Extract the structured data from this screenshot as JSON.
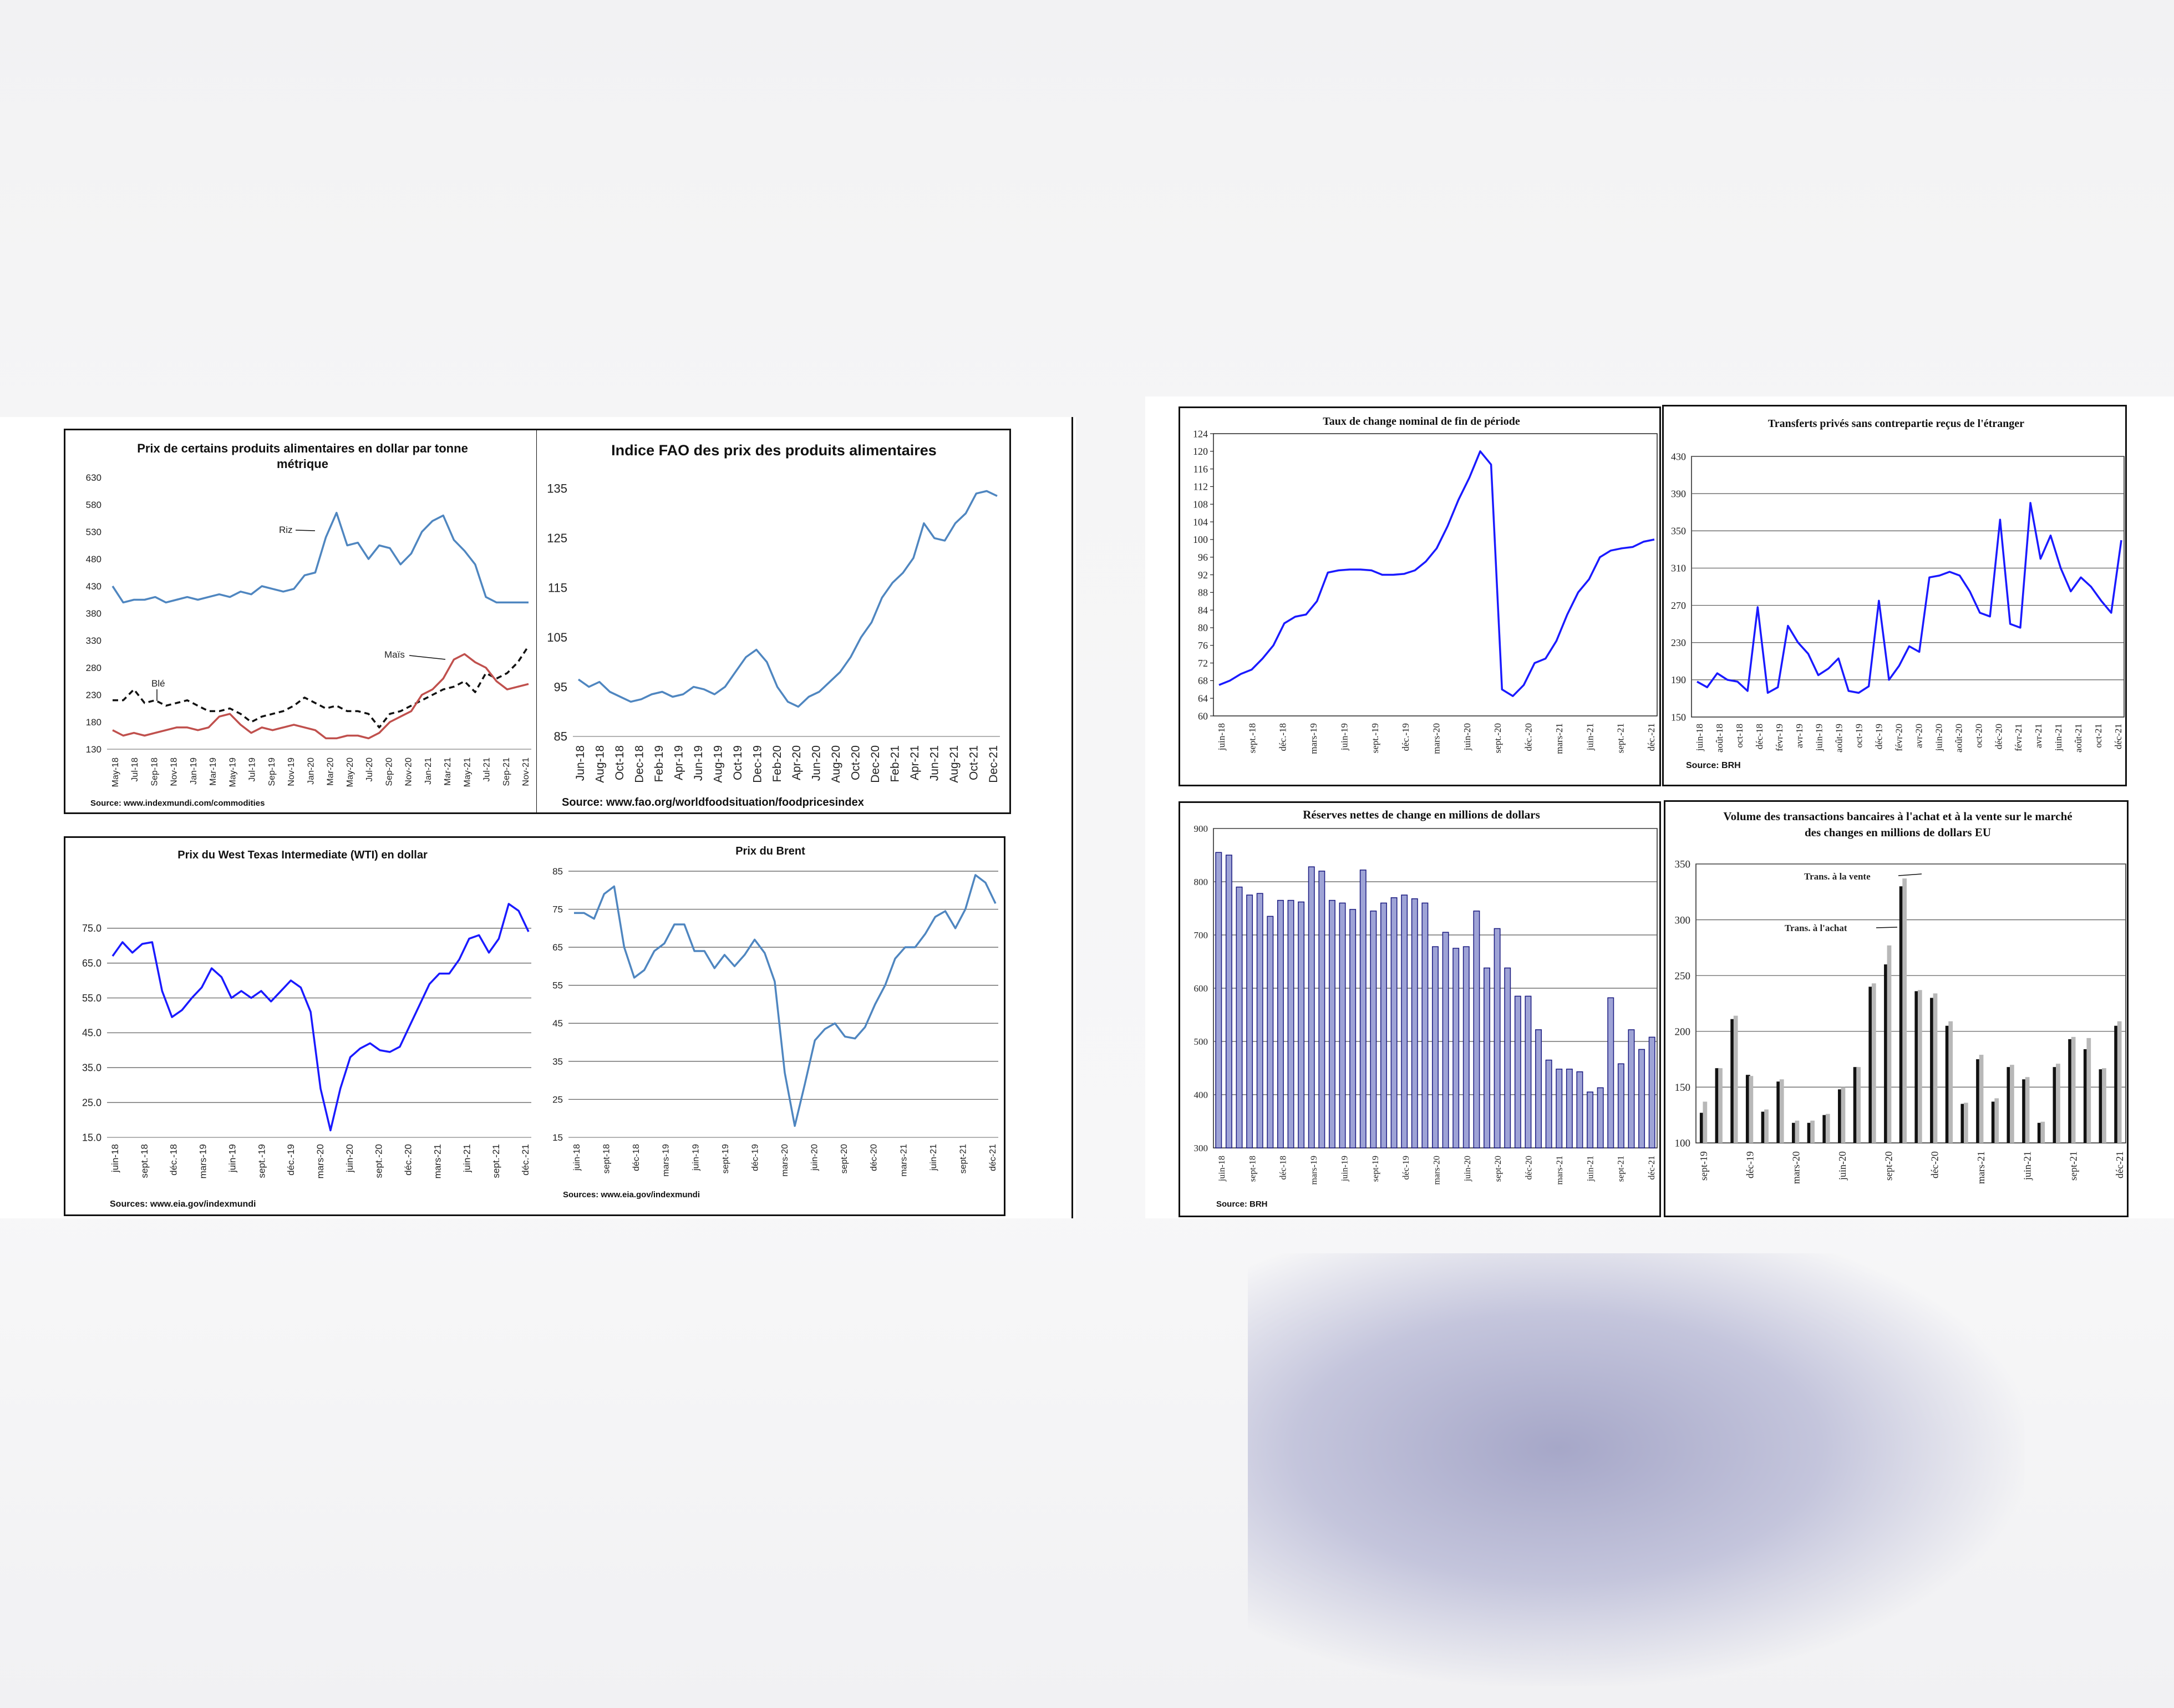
{
  "colors": {
    "blue": "#1a1aff",
    "steel": "#4f86c0",
    "red": "#c0504d",
    "black": "#111111",
    "grey": "#b8b8b8",
    "bar_fill": "#9ea3d6"
  },
  "chart_data": [
    {
      "id": "food",
      "type": "line",
      "title": "Prix de certains produits alimentaires en dollar par tonne métrique",
      "title_lines": [
        "Prix de certains produits alimentaires en dollar par tonne",
        "métrique"
      ],
      "y_ticks": [
        "130",
        "180",
        "230",
        "280",
        "330",
        "380",
        "430",
        "480",
        "530",
        "580",
        "630"
      ],
      "ylim": [
        130,
        630
      ],
      "x_labels": [
        "May-18",
        "Jul-18",
        "Sep-18",
        "Nov-18",
        "Jan-19",
        "Mar-19",
        "May-19",
        "Jul-19",
        "Sep-19",
        "Nov-19",
        "Jan-20",
        "Mar-20",
        "May-20",
        "Jul-20",
        "Sep-20",
        "Nov-20",
        "Jan-21",
        "Mar-21",
        "May-21",
        "Jul-21",
        "Sep-21",
        "Nov-21"
      ],
      "source": "Source: www.indexmundi.com/commodities",
      "annotations": [
        "Riz",
        "Blé",
        "Maïs"
      ],
      "series": [
        {
          "name": "Riz",
          "color": "#4f86c0",
          "dash": false,
          "values": [
            430,
            400,
            405,
            405,
            410,
            400,
            405,
            410,
            405,
            410,
            415,
            410,
            420,
            415,
            430,
            425,
            420,
            425,
            450,
            455,
            520,
            565,
            505,
            510,
            480,
            505,
            500,
            470,
            490,
            530,
            550,
            560,
            515,
            495,
            470,
            410,
            400,
            400,
            400,
            400
          ]
        },
        {
          "name": "Blé",
          "color": "#111111",
          "dash": true,
          "values": [
            220,
            220,
            240,
            215,
            220,
            210,
            215,
            220,
            210,
            200,
            200,
            205,
            195,
            180,
            190,
            195,
            200,
            210,
            225,
            215,
            205,
            210,
            200,
            200,
            195,
            170,
            195,
            200,
            210,
            220,
            230,
            240,
            245,
            255,
            235,
            270,
            260,
            270,
            290,
            320
          ]
        },
        {
          "name": "Maïs",
          "color": "#c0504d",
          "dash": false,
          "values": [
            165,
            155,
            160,
            155,
            160,
            165,
            170,
            170,
            165,
            170,
            190,
            195,
            175,
            160,
            170,
            165,
            170,
            175,
            170,
            165,
            150,
            150,
            155,
            155,
            150,
            160,
            180,
            190,
            200,
            230,
            240,
            260,
            295,
            305,
            290,
            280,
            255,
            240,
            245,
            250
          ]
        }
      ]
    },
    {
      "id": "fao",
      "type": "line",
      "title": "Indice FAO des prix des produits alimentaires",
      "y_ticks": [
        "85",
        "95",
        "105",
        "115",
        "125",
        "135"
      ],
      "ylim": [
        85,
        135
      ],
      "x_labels": [
        "Jun-18",
        "Aug-18",
        "Oct-18",
        "Dec-18",
        "Feb-19",
        "Apr-19",
        "Jun-19",
        "Aug-19",
        "Oct-19",
        "Dec-19",
        "Feb-20",
        "Apr-20",
        "Jun-20",
        "Aug-20",
        "Oct-20",
        "Dec-20",
        "Feb-21",
        "Apr-21",
        "Jun-21",
        "Aug-21",
        "Oct-21",
        "Dec-21"
      ],
      "source": "Source: www.fao.org/worldfoodsituation/foodpricesindex",
      "series": [
        {
          "name": "",
          "color": "#4f86c0",
          "values": [
            96.5,
            95,
            96,
            94,
            93,
            92,
            92.5,
            93.5,
            94,
            93,
            93.5,
            95,
            94.5,
            93.5,
            95,
            98,
            101,
            102.5,
            100,
            95,
            92,
            91,
            93,
            94,
            96,
            98,
            101,
            105,
            108,
            113,
            116,
            118,
            121,
            128,
            125,
            124.5,
            128,
            130,
            134,
            134.5,
            133.5
          ]
        }
      ]
    },
    {
      "id": "wti",
      "type": "line",
      "title": "Prix du West Texas Intermediate (WTI) en dollar",
      "y_ticks": [
        "15.0",
        "25.0",
        "35.0",
        "45.0",
        "55.0",
        "65.0",
        "75.0"
      ],
      "ylim": [
        15,
        85
      ],
      "x_labels": [
        "juin-18",
        "sept.-18",
        "déc.-18",
        "mars-19",
        "juin-19",
        "sept.-19",
        "déc.-19",
        "mars-20",
        "juin-20",
        "sept.-20",
        "déc.-20",
        "mars-21",
        "juin-21",
        "sept.-21",
        "déc.-21"
      ],
      "source": "Sources: www.eia.gov/indexmundi",
      "series": [
        {
          "name": "",
          "color": "#1a1aff",
          "values": [
            67,
            71,
            68,
            70.5,
            71,
            57,
            49.5,
            51.5,
            55,
            58,
            63.5,
            61,
            55,
            57,
            55,
            57,
            54,
            57,
            60,
            58,
            51,
            29,
            17,
            29,
            38,
            40.5,
            42,
            40,
            39.5,
            41,
            47,
            53,
            59,
            62,
            62,
            66,
            72,
            73,
            68,
            72,
            82,
            80,
            74
          ]
        }
      ]
    },
    {
      "id": "brent",
      "type": "line",
      "title": "Prix du Brent",
      "y_ticks": [
        "15",
        "25",
        "35",
        "45",
        "55",
        "65",
        "75",
        "85"
      ],
      "ylim": [
        15,
        85
      ],
      "x_labels": [
        "juin-18",
        "sept-18",
        "déc-18",
        "mars-19",
        "juin-19",
        "sept-19",
        "déc-19",
        "mars-20",
        "juin-20",
        "sept-20",
        "déc-20",
        "mars-21",
        "juin-21",
        "sept-21",
        "déc-21"
      ],
      "source": "Sources: www.eia.gov/indexmundi",
      "series": [
        {
          "name": "",
          "color": "#4f86c0",
          "values": [
            74,
            74,
            72.5,
            79,
            81,
            65,
            57,
            59,
            64,
            66,
            71,
            71,
            64,
            64,
            59.5,
            63,
            60,
            63,
            67,
            63.5,
            56,
            32,
            18,
            29,
            40.5,
            43.5,
            45,
            41.5,
            41,
            44,
            50,
            55,
            62,
            65,
            65,
            68.5,
            73,
            74.5,
            70,
            75,
            84,
            82,
            76.5
          ]
        }
      ]
    },
    {
      "id": "fx",
      "type": "line",
      "title": "Taux de change nominal de fin de période",
      "y_ticks": [
        "60",
        "64",
        "68",
        "72",
        "76",
        "80",
        "84",
        "88",
        "92",
        "96",
        "100",
        "104",
        "108",
        "112",
        "116",
        "120",
        "124"
      ],
      "ylim": [
        60,
        124
      ],
      "x_labels": [
        "juin-18",
        "sept.-18",
        "déc.-18",
        "mars-19",
        "juin-19",
        "sept.-19",
        "déc.-19",
        "mars-20",
        "juin-20",
        "sept.-20",
        "déc.-20",
        "mars-21",
        "juin-21",
        "sept.-21",
        "déc.-21"
      ],
      "series": [
        {
          "name": "",
          "color": "#1a1aff",
          "values": [
            67,
            68,
            69.5,
            70.5,
            73,
            76,
            81,
            82.5,
            83,
            86,
            92.5,
            93,
            93.2,
            93.2,
            93,
            92,
            92,
            92.2,
            93,
            95,
            98,
            103,
            109,
            114,
            120,
            117,
            66,
            64.5,
            67,
            72,
            73,
            77,
            83,
            88,
            91,
            96,
            97.5,
            98,
            98.3,
            99.5,
            100
          ]
        }
      ]
    },
    {
      "id": "transfers",
      "type": "line",
      "title": "Transferts privés sans contrepartie reçus de l'étranger",
      "y_ticks": [
        "150",
        "190",
        "230",
        "270",
        "310",
        "350",
        "390",
        "430"
      ],
      "ylim": [
        150,
        430
      ],
      "x_labels": [
        "juin-18",
        "août-18",
        "oct-18",
        "déc-18",
        "févr-19",
        "avr-19",
        "juin-19",
        "août-19",
        "oct-19",
        "déc-19",
        "févr-20",
        "avr-20",
        "juin-20",
        "août-20",
        "oct-20",
        "déc-20",
        "févr-21",
        "avr-21",
        "juin-21",
        "août-21",
        "oct-21",
        "déc-21"
      ],
      "source": "Source: BRH",
      "series": [
        {
          "name": "",
          "color": "#1a1aff",
          "values": [
            188,
            182,
            197,
            190,
            188,
            178,
            268,
            176,
            182,
            248,
            230,
            218,
            195,
            202,
            213,
            178,
            176,
            183,
            275,
            190,
            205,
            226,
            220,
            300,
            302,
            306,
            302,
            285,
            262,
            258,
            362,
            250,
            246,
            380,
            320,
            345,
            310,
            285,
            300,
            290,
            275,
            262,
            340
          ]
        }
      ]
    },
    {
      "id": "reserves",
      "type": "bar",
      "title": "Réserves nettes de change en millions de dollars",
      "y_ticks": [
        "300",
        "400",
        "500",
        "600",
        "700",
        "800",
        "900"
      ],
      "ylim": [
        300,
        900
      ],
      "x_labels": [
        "juin-18",
        "sept-18",
        "déc-18",
        "mars-19",
        "juin-19",
        "sept-19",
        "déc-19",
        "mars-20",
        "juin-20",
        "sept-20",
        "déc-20",
        "mars-21",
        "juin-21",
        "sept-21",
        "déc-21"
      ],
      "source": "Source: BRH",
      "values": [
        855,
        850,
        790,
        775,
        778,
        735,
        765,
        765,
        762,
        828,
        820,
        765,
        760,
        748,
        822,
        745,
        760,
        770,
        775,
        768,
        760,
        678,
        705,
        675,
        678,
        745,
        638,
        712,
        638,
        585,
        585,
        522,
        465,
        448,
        448,
        443,
        405,
        413,
        582,
        458,
        522,
        485,
        508
      ]
    },
    {
      "id": "transactions",
      "type": "bar",
      "title": "Volume des transactions bancaires à l'achat et à la vente sur le marché des changes en millions de dollars EU",
      "title_lines": [
        "Volume des transactions bancaires à l'achat et à la vente sur le marché",
        "des changes  en millions de dollars EU"
      ],
      "y_ticks": [
        "100",
        "150",
        "200",
        "250",
        "300",
        "350"
      ],
      "ylim": [
        100,
        350
      ],
      "x_labels": [
        "sept-19",
        "déc-19",
        "mars-20",
        "juin-20",
        "sept-20",
        "déc-20",
        "mars-21",
        "juin-21",
        "sept-21",
        "déc-21"
      ],
      "annotations": [
        "Trans. à la vente",
        "Trans. à l'achat"
      ],
      "series": [
        {
          "name": "Trans. à l'achat",
          "color": "#111111",
          "values": [
            127,
            167,
            211,
            161,
            128,
            155,
            118,
            118,
            125,
            148,
            168,
            240,
            260,
            330,
            236,
            230,
            205,
            135,
            175,
            137,
            168,
            157,
            118,
            168,
            193,
            184,
            166,
            205
          ]
        },
        {
          "name": "Trans. à la vente",
          "color": "#b8b8b8",
          "values": [
            137,
            167,
            214,
            160,
            130,
            157,
            120,
            120,
            126,
            150,
            168,
            243,
            277,
            337,
            237,
            234,
            209,
            136,
            179,
            140,
            170,
            159,
            119,
            171,
            195,
            194,
            167,
            209
          ]
        }
      ]
    }
  ]
}
